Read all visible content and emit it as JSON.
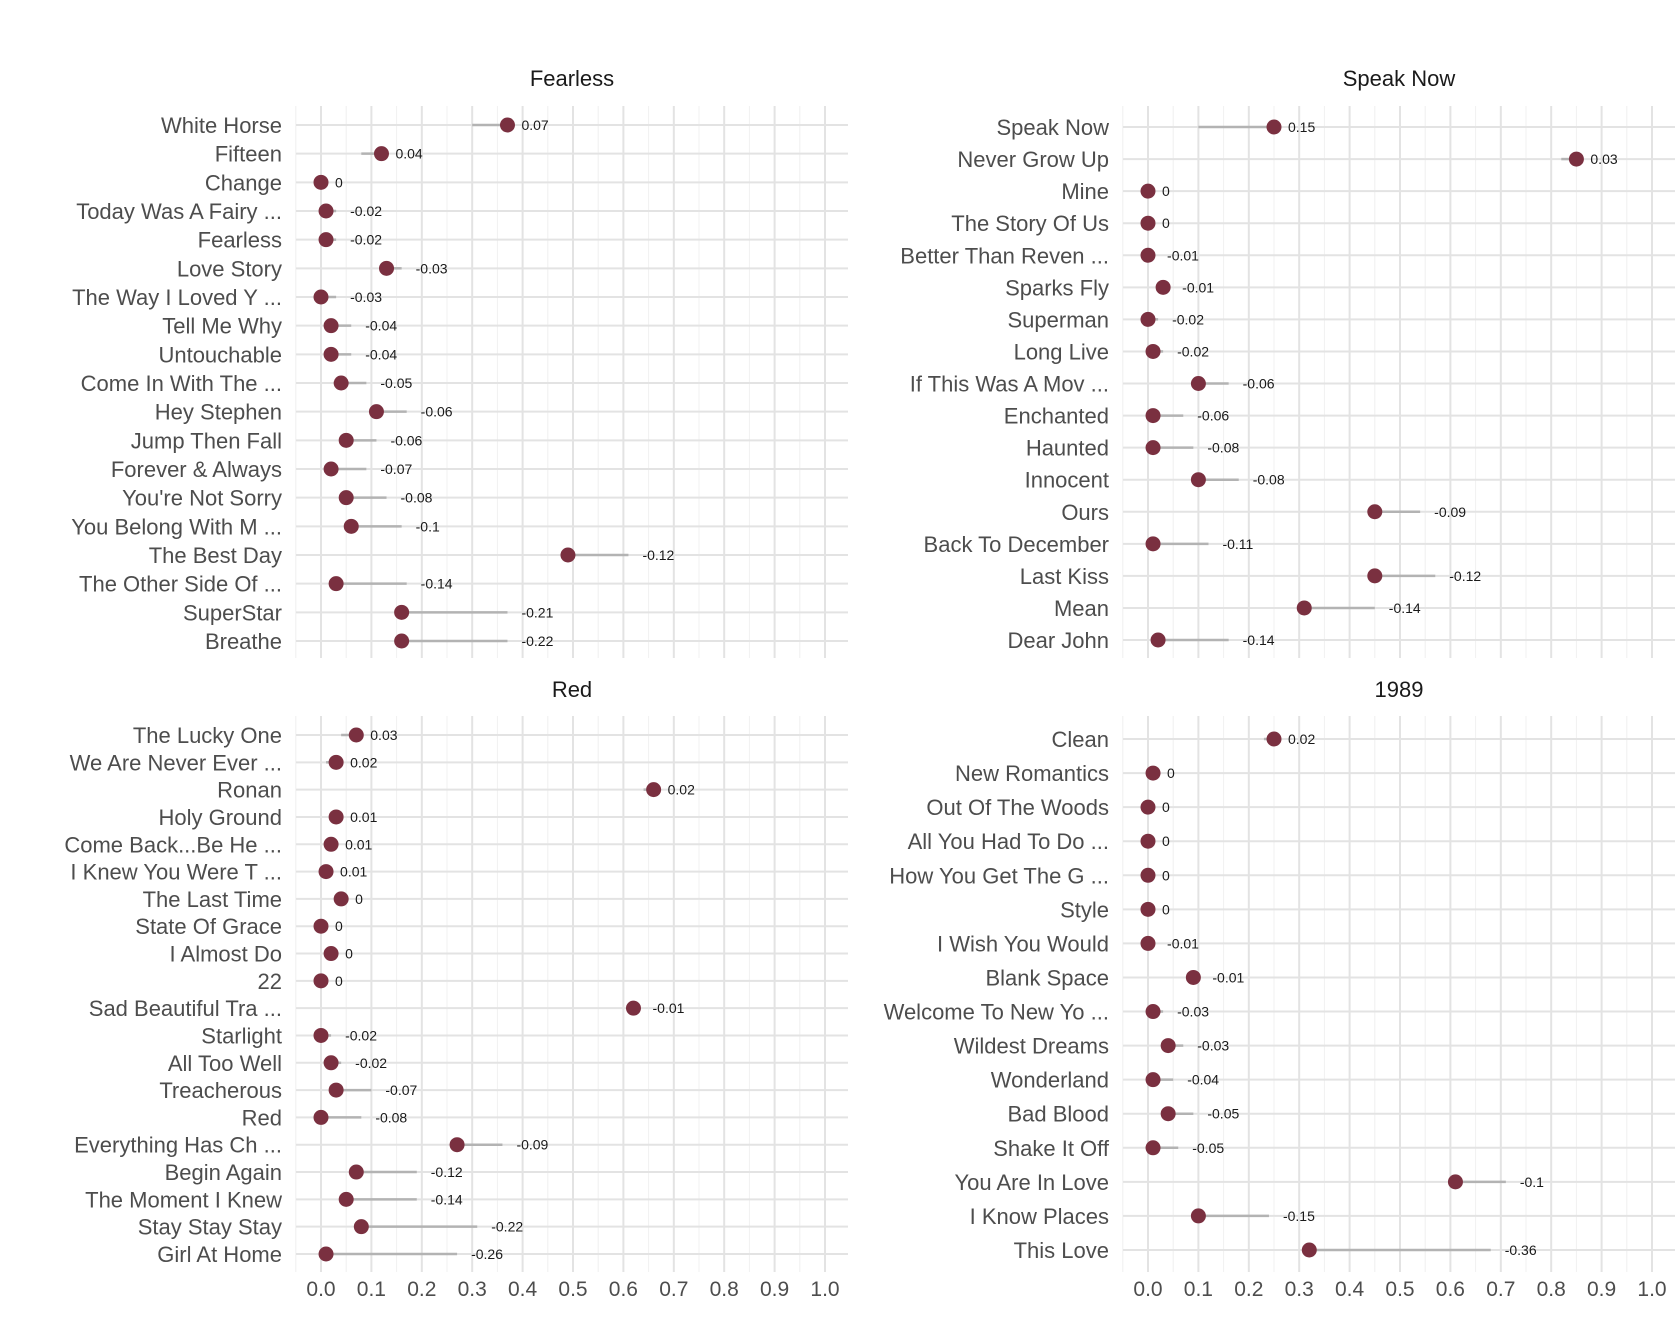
{
  "colors": {
    "point": "#7a3040",
    "segment": "#b3b3b3",
    "grid_major": "#e3e3e3",
    "grid_minor": "#f0f0f0"
  },
  "chart_data": [
    {
      "type": "dumbbell",
      "title": "Fearless",
      "xlim": [
        0,
        1
      ],
      "xticks": [
        "0.0",
        "0.1",
        "0.2",
        "0.3",
        "0.4",
        "0.5",
        "0.6",
        "0.7",
        "0.8",
        "0.9",
        "1.0"
      ],
      "show_x_ticks": false,
      "grid": true,
      "songs": [
        {
          "name": "White Horse",
          "point": 0.37,
          "end": 0.3,
          "label": "0.07"
        },
        {
          "name": "Fifteen",
          "point": 0.12,
          "end": 0.08,
          "label": "0.04"
        },
        {
          "name": "Change",
          "point": 0.0,
          "end": 0.0,
          "label": "0"
        },
        {
          "name": "Today Was A Fairy ...",
          "point": 0.01,
          "end": 0.03,
          "label": "-0.02"
        },
        {
          "name": "Fearless",
          "point": 0.01,
          "end": 0.03,
          "label": "-0.02"
        },
        {
          "name": "Love Story",
          "point": 0.13,
          "end": 0.16,
          "label": "-0.03"
        },
        {
          "name": "The Way I Loved Y ...",
          "point": 0.0,
          "end": 0.03,
          "label": "-0.03"
        },
        {
          "name": "Tell Me Why",
          "point": 0.02,
          "end": 0.06,
          "label": "-0.04"
        },
        {
          "name": "Untouchable",
          "point": 0.02,
          "end": 0.06,
          "label": "-0.04"
        },
        {
          "name": "Come In With The  ...",
          "point": 0.04,
          "end": 0.09,
          "label": "-0.05"
        },
        {
          "name": "Hey Stephen",
          "point": 0.11,
          "end": 0.17,
          "label": "-0.06"
        },
        {
          "name": "Jump Then Fall",
          "point": 0.05,
          "end": 0.11,
          "label": "-0.06"
        },
        {
          "name": "Forever & Always",
          "point": 0.02,
          "end": 0.09,
          "label": "-0.07"
        },
        {
          "name": "You're Not Sorry",
          "point": 0.05,
          "end": 0.13,
          "label": "-0.08"
        },
        {
          "name": "You Belong With M ...",
          "point": 0.06,
          "end": 0.16,
          "label": "-0.1"
        },
        {
          "name": "The Best Day",
          "point": 0.49,
          "end": 0.61,
          "label": "-0.12"
        },
        {
          "name": "The Other Side Of ...",
          "point": 0.03,
          "end": 0.17,
          "label": "-0.14"
        },
        {
          "name": "SuperStar",
          "point": 0.16,
          "end": 0.37,
          "label": "-0.21"
        },
        {
          "name": "Breathe",
          "point": 0.16,
          "end": 0.37,
          "label": "-0.22"
        }
      ]
    },
    {
      "type": "dumbbell",
      "title": "Speak Now",
      "xlim": [
        0,
        1
      ],
      "xticks": [
        "0.0",
        "0.1",
        "0.2",
        "0.3",
        "0.4",
        "0.5",
        "0.6",
        "0.7",
        "0.8",
        "0.9",
        "1.0"
      ],
      "show_x_ticks": false,
      "grid": true,
      "songs": [
        {
          "name": "Speak Now",
          "point": 0.25,
          "end": 0.1,
          "label": "0.15"
        },
        {
          "name": "Never Grow Up",
          "point": 0.85,
          "end": 0.82,
          "label": "0.03"
        },
        {
          "name": "Mine",
          "point": 0.0,
          "end": 0.0,
          "label": "0"
        },
        {
          "name": "The Story Of Us",
          "point": 0.0,
          "end": 0.0,
          "label": "0"
        },
        {
          "name": "Better Than Reven ...",
          "point": 0.0,
          "end": 0.01,
          "label": "-0.01"
        },
        {
          "name": "Sparks Fly",
          "point": 0.03,
          "end": 0.04,
          "label": "-0.01"
        },
        {
          "name": "Superman",
          "point": 0.0,
          "end": 0.02,
          "label": "-0.02"
        },
        {
          "name": "Long Live",
          "point": 0.01,
          "end": 0.03,
          "label": "-0.02"
        },
        {
          "name": "If This Was A Mov ...",
          "point": 0.1,
          "end": 0.16,
          "label": "-0.06"
        },
        {
          "name": "Enchanted",
          "point": 0.01,
          "end": 0.07,
          "label": "-0.06"
        },
        {
          "name": "Haunted",
          "point": 0.01,
          "end": 0.09,
          "label": "-0.08"
        },
        {
          "name": "Innocent",
          "point": 0.1,
          "end": 0.18,
          "label": "-0.08"
        },
        {
          "name": "Ours",
          "point": 0.45,
          "end": 0.54,
          "label": "-0.09"
        },
        {
          "name": "Back To December",
          "point": 0.01,
          "end": 0.12,
          "label": "-0.11"
        },
        {
          "name": "Last Kiss",
          "point": 0.45,
          "end": 0.57,
          "label": "-0.12"
        },
        {
          "name": "Mean",
          "point": 0.31,
          "end": 0.45,
          "label": "-0.14"
        },
        {
          "name": "Dear John",
          "point": 0.02,
          "end": 0.16,
          "label": "-0.14"
        }
      ]
    },
    {
      "type": "dumbbell",
      "title": "Red",
      "xlim": [
        0,
        1
      ],
      "xticks": [
        "0.0",
        "0.1",
        "0.2",
        "0.3",
        "0.4",
        "0.5",
        "0.6",
        "0.7",
        "0.8",
        "0.9",
        "1.0"
      ],
      "show_x_ticks": true,
      "grid": true,
      "songs": [
        {
          "name": "The Lucky One",
          "point": 0.07,
          "end": 0.04,
          "label": "0.03"
        },
        {
          "name": "We Are Never Ever ...",
          "point": 0.03,
          "end": 0.01,
          "label": "0.02"
        },
        {
          "name": "Ronan",
          "point": 0.66,
          "end": 0.64,
          "label": "0.02"
        },
        {
          "name": "Holy Ground",
          "point": 0.03,
          "end": 0.02,
          "label": "0.01"
        },
        {
          "name": "Come Back...Be He ...",
          "point": 0.02,
          "end": 0.01,
          "label": "0.01"
        },
        {
          "name": "I Knew You Were T ...",
          "point": 0.01,
          "end": 0.0,
          "label": "0.01"
        },
        {
          "name": "The Last Time",
          "point": 0.04,
          "end": 0.04,
          "label": "0"
        },
        {
          "name": "State Of Grace",
          "point": 0.0,
          "end": 0.0,
          "label": "0"
        },
        {
          "name": "I Almost Do",
          "point": 0.02,
          "end": 0.02,
          "label": "0"
        },
        {
          "name": "22",
          "point": 0.0,
          "end": 0.0,
          "label": "0"
        },
        {
          "name": "Sad Beautiful Tra ...",
          "point": 0.62,
          "end": 0.63,
          "label": "-0.01"
        },
        {
          "name": "Starlight",
          "point": 0.0,
          "end": 0.02,
          "label": "-0.02"
        },
        {
          "name": "All Too Well",
          "point": 0.02,
          "end": 0.04,
          "label": "-0.02"
        },
        {
          "name": "Treacherous",
          "point": 0.03,
          "end": 0.1,
          "label": "-0.07"
        },
        {
          "name": "Red",
          "point": 0.0,
          "end": 0.08,
          "label": "-0.08"
        },
        {
          "name": "Everything Has Ch ...",
          "point": 0.27,
          "end": 0.36,
          "label": "-0.09"
        },
        {
          "name": "Begin Again",
          "point": 0.07,
          "end": 0.19,
          "label": "-0.12"
        },
        {
          "name": "The Moment I Knew",
          "point": 0.05,
          "end": 0.19,
          "label": "-0.14"
        },
        {
          "name": "Stay Stay Stay",
          "point": 0.08,
          "end": 0.31,
          "label": "-0.22"
        },
        {
          "name": "Girl At Home",
          "point": 0.01,
          "end": 0.27,
          "label": "-0.26"
        }
      ]
    },
    {
      "type": "dumbbell",
      "title": "1989",
      "xlim": [
        0,
        1
      ],
      "xticks": [
        "0.0",
        "0.1",
        "0.2",
        "0.3",
        "0.4",
        "0.5",
        "0.6",
        "0.7",
        "0.8",
        "0.9",
        "1.0"
      ],
      "show_x_ticks": true,
      "grid": true,
      "songs": [
        {
          "name": "Clean",
          "point": 0.25,
          "end": 0.23,
          "label": "0.02"
        },
        {
          "name": "New Romantics",
          "point": 0.01,
          "end": 0.01,
          "label": "0"
        },
        {
          "name": "Out Of The Woods",
          "point": 0.0,
          "end": 0.0,
          "label": "0"
        },
        {
          "name": "All You Had To Do ...",
          "point": 0.0,
          "end": 0.0,
          "label": "0"
        },
        {
          "name": "How You Get The G ...",
          "point": 0.0,
          "end": 0.0,
          "label": "0"
        },
        {
          "name": "Style",
          "point": 0.0,
          "end": 0.0,
          "label": "0"
        },
        {
          "name": "I Wish You Would",
          "point": 0.0,
          "end": 0.01,
          "label": "-0.01"
        },
        {
          "name": "Blank Space",
          "point": 0.09,
          "end": 0.1,
          "label": "-0.01"
        },
        {
          "name": "Welcome To New Yo ...",
          "point": 0.01,
          "end": 0.03,
          "label": "-0.03"
        },
        {
          "name": "Wildest Dreams",
          "point": 0.04,
          "end": 0.07,
          "label": "-0.03"
        },
        {
          "name": "Wonderland",
          "point": 0.01,
          "end": 0.05,
          "label": "-0.04"
        },
        {
          "name": "Bad Blood",
          "point": 0.04,
          "end": 0.09,
          "label": "-0.05"
        },
        {
          "name": "Shake It Off",
          "point": 0.01,
          "end": 0.06,
          "label": "-0.05"
        },
        {
          "name": "You Are In Love",
          "point": 0.61,
          "end": 0.71,
          "label": "-0.1"
        },
        {
          "name": "I Know Places",
          "point": 0.1,
          "end": 0.24,
          "label": "-0.15"
        },
        {
          "name": "This Love",
          "point": 0.32,
          "end": 0.68,
          "label": "-0.36"
        }
      ]
    }
  ]
}
